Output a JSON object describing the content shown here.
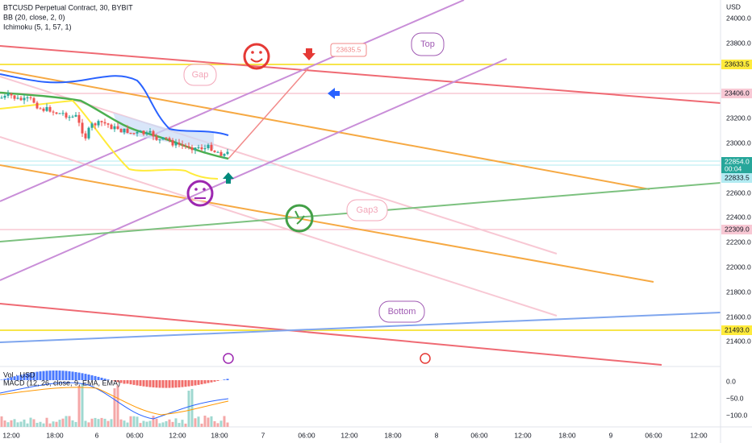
{
  "header": {
    "title": "BTCUSD Perpetual Contract, 30, BYBIT",
    "indicators": [
      "BB (20, close, 2, 0)",
      "Ichimoku (5, 1, 57, 1)"
    ]
  },
  "price_axis": {
    "unit": "USD",
    "labels": [
      "24000.0",
      "23800.0",
      "23200.0",
      "23000.0",
      "22600.0",
      "22400.0",
      "22200.0",
      "22000.0",
      "21800.0",
      "21600.0",
      "21400.0"
    ]
  },
  "price_tags": [
    {
      "label": "23633.5"
    },
    {
      "label": "23406.0"
    },
    {
      "label": "22854.0",
      "sublabel": "00:04"
    },
    {
      "label": "22833.5"
    },
    {
      "label": "22309.0"
    },
    {
      "label": "21493.0"
    }
  ],
  "annotations": [
    "Gap",
    "Top",
    "Gap3",
    "Bottom",
    "23635.5"
  ],
  "lower_panel": {
    "titles": [
      "Vol · USD",
      "MACD (12, 26, close, 9, EMA, EMA)"
    ],
    "axis": [
      "0.0",
      "−50.0",
      "−100.0"
    ]
  },
  "time_axis": [
    "12:00",
    "18:00",
    "6",
    "06:00",
    "12:00",
    "18:00",
    "7",
    "06:00",
    "12:00",
    "18:00",
    "8",
    "06:00",
    "12:00",
    "18:00",
    "9",
    "06:00",
    "12:00"
  ]
}
